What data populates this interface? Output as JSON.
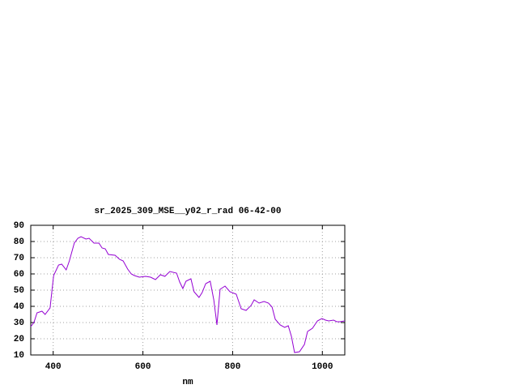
{
  "chart_data": {
    "type": "line",
    "title": "sr_2025_309_MSE__y02_r_rad 06-42-00",
    "xlabel": "nm",
    "xlim": [
      350,
      1050
    ],
    "xticks": [
      400,
      600,
      800,
      1000
    ],
    "ylim": [
      10,
      90
    ],
    "yticks": [
      10,
      20,
      30,
      40,
      50,
      60,
      70,
      80,
      90
    ],
    "grid": true,
    "x": [
      350,
      357,
      364,
      375,
      382,
      393,
      401,
      412,
      419,
      429,
      436,
      447,
      455,
      462,
      473,
      480,
      491,
      502,
      509,
      516,
      523,
      538,
      548,
      556,
      566,
      574,
      581,
      592,
      606,
      617,
      628,
      639,
      649,
      660,
      675,
      682,
      689,
      696,
      707,
      714,
      725,
      732,
      740,
      750,
      758,
      765,
      772,
      783,
      794,
      808,
      819,
      830,
      841,
      848,
      859,
      870,
      880,
      888,
      895,
      906,
      916,
      924,
      931,
      938,
      949,
      960,
      967,
      978,
      989,
      999,
      1007,
      1014,
      1025,
      1032,
      1039,
      1050
    ],
    "series": [
      {
        "color": "#9400d3",
        "values": [
          27.5,
          30,
          36,
          37,
          35,
          39,
          59,
          65.5,
          66,
          62.5,
          68,
          79,
          82,
          83,
          81.5,
          82,
          79,
          79,
          76,
          75.5,
          72,
          71.5,
          69,
          68,
          63,
          60,
          59,
          58,
          58.5,
          58,
          56.5,
          59.5,
          58.5,
          61.5,
          60.5,
          55,
          51,
          55.5,
          57,
          49,
          45.5,
          48.5,
          54,
          55.5,
          44,
          28.5,
          50.5,
          52.5,
          49,
          47.5,
          38.5,
          37.5,
          40.5,
          44,
          42,
          43,
          42,
          39.5,
          32,
          28.5,
          27,
          28,
          21.5,
          11.5,
          12,
          16.5,
          24.5,
          26.5,
          31,
          32.5,
          31.5,
          31,
          31.5,
          30.5,
          30.5,
          31
        ]
      }
    ]
  }
}
